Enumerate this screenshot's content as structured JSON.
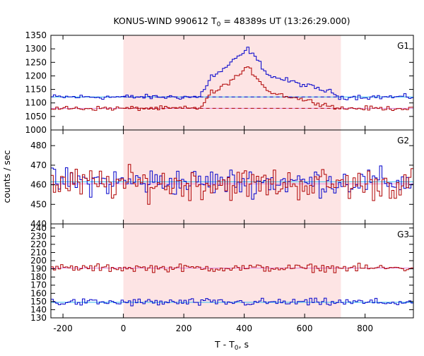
{
  "chart_data": {
    "type": "line",
    "title": "KONUS-WIND 990612 T",
    "title_sub": "0",
    "title_rest": " = 48389s UT (13:26:29.000)",
    "xlabel": "T - T",
    "xlabel_sub": "0",
    "xlabel_rest": ", s",
    "ylabel": "counts / sec",
    "xlim": [
      -240,
      960
    ],
    "xticks": [
      -200,
      0,
      200,
      400,
      600,
      800
    ],
    "shaded_interval": [
      0,
      720
    ],
    "colors": {
      "blue": "#0000cc",
      "red": "#b00000",
      "shade": "#fde4e4",
      "fit_blue": "#33bbee",
      "fit_red": "#dd88dd"
    },
    "bin_width": 8,
    "panels": [
      {
        "name": "G1",
        "ylim": [
          1000,
          1350
        ],
        "yticks": [
          1000,
          1050,
          1100,
          1150,
          1200,
          1250,
          1300,
          1350
        ],
        "background": [
          {
            "series": "blue",
            "level": 1122
          },
          {
            "series": "red",
            "level": 1080
          }
        ],
        "fit_lines": [
          {
            "series": "blue",
            "level": 1122
          },
          {
            "series": "red",
            "level": 1080
          }
        ],
        "series": [
          {
            "color": "blue",
            "base": 1122,
            "noise": 8,
            "pulse": {
              "start": 248,
              "rise_end": 288,
              "peak_start": 300,
              "peak": 1300,
              "peak_time": 410,
              "decay_end": 480,
              "mid_level": 1200,
              "tail_end": 700,
              "tail_level": 1135
            }
          },
          {
            "color": "red",
            "base": 1080,
            "noise": 7,
            "pulse": {
              "start": 248,
              "rise_end": 288,
              "peak_start": 300,
              "peak": 1230,
              "peak_time": 410,
              "decay_end": 480,
              "mid_level": 1140,
              "tail_end": 700,
              "tail_level": 1085
            }
          }
        ]
      },
      {
        "name": "G2",
        "ylim": [
          440,
          488
        ],
        "yticks": [
          440,
          450,
          460,
          470,
          480
        ],
        "fit_lines": [
          {
            "series": "blue",
            "level": 461.5
          },
          {
            "series": "red",
            "level": 460.5
          }
        ],
        "series": [
          {
            "color": "blue",
            "base": 461.5,
            "noise": 6
          },
          {
            "color": "red",
            "base": 460.5,
            "noise": 7
          }
        ]
      },
      {
        "name": "G3",
        "ylim": [
          130,
          245
        ],
        "yticks": [
          130,
          140,
          150,
          160,
          170,
          180,
          190,
          200,
          210,
          220,
          230,
          240
        ],
        "fit_lines": [
          {
            "series": "red",
            "level": 191
          },
          {
            "series": "blue",
            "level": 149
          }
        ],
        "series": [
          {
            "color": "red",
            "base": 191,
            "noise": 4
          },
          {
            "color": "blue",
            "base": 149,
            "noise": 4
          }
        ]
      }
    ]
  }
}
